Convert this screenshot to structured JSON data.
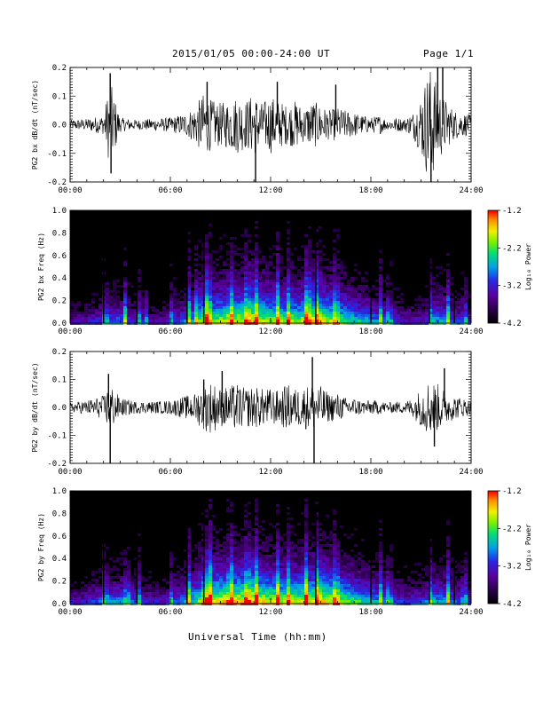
{
  "header": {
    "title": "2015/01/05  00:00-24:00 UT",
    "page": "Page 1/1"
  },
  "footer": {
    "xlabel": "Universal Time (hh:mm)"
  },
  "colors": {
    "axis": "#000000",
    "trace": "#000000",
    "spectrogram_background": "#000000"
  },
  "chart_data": [
    {
      "type": "line",
      "title": "",
      "ylabel": "PG2 bx dB/dt (nT/sec)",
      "xlabel": "",
      "xticks": [
        "00:00",
        "06:00",
        "12:00",
        "18:00",
        "24:00"
      ],
      "yticks": [
        "-0.2",
        "-0.1",
        "0.0",
        "0.1",
        "0.2"
      ],
      "xlim": [
        0,
        24
      ],
      "ylim": [
        -0.2,
        0.2
      ],
      "grid": false,
      "series": [
        {
          "x": [
            0,
            1,
            2,
            2.4,
            3,
            4,
            5,
            6,
            7,
            7.5,
            8,
            8.5,
            9,
            9.5,
            10,
            10.5,
            11,
            11.5,
            12,
            12.5,
            13,
            13.5,
            14,
            14.5,
            15,
            15.5,
            16,
            16.5,
            17,
            17.5,
            18,
            18.5,
            19,
            19.5,
            20,
            20.5,
            21,
            21.5,
            22,
            22.5,
            23,
            23.5,
            24
          ],
          "amplitude": [
            0.02,
            0.025,
            0.04,
            0.18,
            0.03,
            0.02,
            0.025,
            0.03,
            0.05,
            0.08,
            0.13,
            0.1,
            0.09,
            0.1,
            0.12,
            0.1,
            0.13,
            0.09,
            0.12,
            0.1,
            0.08,
            0.1,
            0.07,
            0.1,
            0.08,
            0.06,
            0.07,
            0.06,
            0.05,
            0.04,
            0.03,
            0.04,
            0.02,
            0.03,
            0.025,
            0.05,
            0.12,
            0.25,
            0.16,
            0.1,
            0.06,
            0.05,
            0.04
          ]
        }
      ],
      "spikes": [
        [
          2.4,
          0.18
        ],
        [
          2.45,
          -0.17
        ],
        [
          8.2,
          0.15
        ],
        [
          11.1,
          -0.2
        ],
        [
          12.4,
          0.15
        ],
        [
          15.9,
          0.14
        ],
        [
          21.6,
          -0.2
        ],
        [
          22,
          0.2
        ],
        [
          22.3,
          0.2
        ]
      ]
    },
    {
      "type": "heatmap",
      "title": "",
      "ylabel": "PG2 bx Freq (Hz)",
      "xticks": [
        "00:00",
        "06:00",
        "12:00",
        "18:00",
        "24:00"
      ],
      "yticks": [
        "0.0",
        "0.2",
        "0.4",
        "0.6",
        "0.8",
        "1.0"
      ],
      "xlim": [
        0,
        24
      ],
      "ylim": [
        0,
        1.0
      ],
      "colorbar": {
        "label": "Log₁₀ Power",
        "ticks": [
          "-1.2",
          "-2.2",
          "-3.2",
          "-4.2"
        ],
        "range": [
          -4.2,
          -1.2
        ]
      },
      "activity": {
        "x": [
          0,
          1,
          2,
          3,
          4,
          5,
          6,
          7,
          8,
          9,
          10,
          11,
          12,
          13,
          14,
          15,
          16,
          17,
          18,
          19,
          20,
          21,
          22,
          23,
          24
        ],
        "level": [
          0.3,
          0.35,
          0.45,
          0.5,
          0.35,
          0.3,
          0.35,
          0.55,
          0.75,
          0.8,
          0.85,
          0.85,
          0.8,
          0.75,
          0.8,
          0.85,
          0.75,
          0.65,
          0.55,
          0.45,
          0.35,
          0.35,
          0.6,
          0.45,
          0.35
        ]
      },
      "bright_lines": [
        2.0,
        3.2,
        4.0,
        4.4,
        6.0,
        7.0,
        7.5,
        8.0,
        8.2,
        9.5,
        10.5,
        11.0,
        12.3,
        13.0,
        14.0,
        14.3,
        14.7,
        15.8,
        18.5,
        19.0,
        21.5,
        22.5,
        23.5
      ],
      "dropout_lines": [
        2.0,
        4.0,
        7.0,
        8.0,
        14.7,
        18.0,
        21.5,
        23.0
      ]
    },
    {
      "type": "line",
      "title": "",
      "ylabel": "PG2 by dB/dt (nT/sec)",
      "xlabel": "",
      "xticks": [
        "00:00",
        "06:00",
        "12:00",
        "18:00",
        "24:00"
      ],
      "yticks": [
        "-0.2",
        "-0.1",
        "0.0",
        "0.1",
        "0.2"
      ],
      "xlim": [
        0,
        24
      ],
      "ylim": [
        -0.2,
        0.2
      ],
      "grid": false,
      "series": [
        {
          "x": [
            0,
            1,
            2,
            2.4,
            3,
            4,
            5,
            6,
            7,
            7.5,
            8,
            8.5,
            9,
            9.5,
            10,
            10.5,
            11,
            11.5,
            12,
            12.5,
            13,
            13.5,
            14,
            14.5,
            15,
            15.5,
            16,
            16.5,
            17,
            17.5,
            18,
            18.5,
            19,
            19.5,
            20,
            20.5,
            21,
            21.5,
            22,
            22.5,
            23,
            23.5,
            24
          ],
          "amplitude": [
            0.02,
            0.03,
            0.05,
            0.1,
            0.04,
            0.025,
            0.025,
            0.03,
            0.05,
            0.06,
            0.1,
            0.11,
            0.08,
            0.09,
            0.1,
            0.08,
            0.09,
            0.08,
            0.08,
            0.07,
            0.1,
            0.08,
            0.09,
            0.1,
            0.09,
            0.06,
            0.06,
            0.04,
            0.04,
            0.03,
            0.03,
            0.03,
            0.02,
            0.025,
            0.025,
            0.04,
            0.08,
            0.12,
            0.1,
            0.07,
            0.05,
            0.04,
            0.03
          ]
        }
      ],
      "spikes": [
        [
          2.3,
          0.12
        ],
        [
          2.4,
          -0.2
        ],
        [
          8.0,
          0.1
        ],
        [
          9.1,
          0.13
        ],
        [
          14.5,
          0.18
        ],
        [
          14.6,
          -0.2
        ],
        [
          21.8,
          -0.14
        ],
        [
          22.4,
          0.14
        ]
      ]
    },
    {
      "type": "heatmap",
      "title": "",
      "ylabel": "PG2 by Freq (Hz)",
      "xticks": [
        "00:00",
        "06:00",
        "12:00",
        "18:00",
        "24:00"
      ],
      "yticks": [
        "0.0",
        "0.2",
        "0.4",
        "0.6",
        "0.8",
        "1.0"
      ],
      "xlim": [
        0,
        24
      ],
      "ylim": [
        0,
        1.0
      ],
      "colorbar": {
        "label": "Log₁₀ Power",
        "ticks": [
          "-1.2",
          "-2.2",
          "-3.2",
          "-4.2"
        ],
        "range": [
          -4.2,
          -1.2
        ]
      },
      "activity": {
        "x": [
          0,
          1,
          2,
          3,
          4,
          5,
          6,
          7,
          8,
          9,
          10,
          11,
          12,
          13,
          14,
          15,
          16,
          17,
          18,
          19,
          20,
          21,
          22,
          23,
          24
        ],
        "level": [
          0.35,
          0.4,
          0.5,
          0.55,
          0.4,
          0.35,
          0.4,
          0.6,
          0.85,
          0.9,
          0.9,
          0.9,
          0.85,
          0.8,
          0.85,
          0.9,
          0.8,
          0.7,
          0.6,
          0.5,
          0.4,
          0.45,
          0.6,
          0.5,
          0.4
        ]
      },
      "bright_lines": [
        2.0,
        3.3,
        4.0,
        6.0,
        7.0,
        8.0,
        8.3,
        9.5,
        10.5,
        11.0,
        12.3,
        13.0,
        14.0,
        14.7,
        15.8,
        18.5,
        19.0,
        21.5,
        22.5,
        23.5
      ],
      "dropout_lines": [
        2.0,
        4.0,
        7.0,
        8.0,
        14.7,
        18.0,
        21.5,
        23.0
      ]
    }
  ]
}
